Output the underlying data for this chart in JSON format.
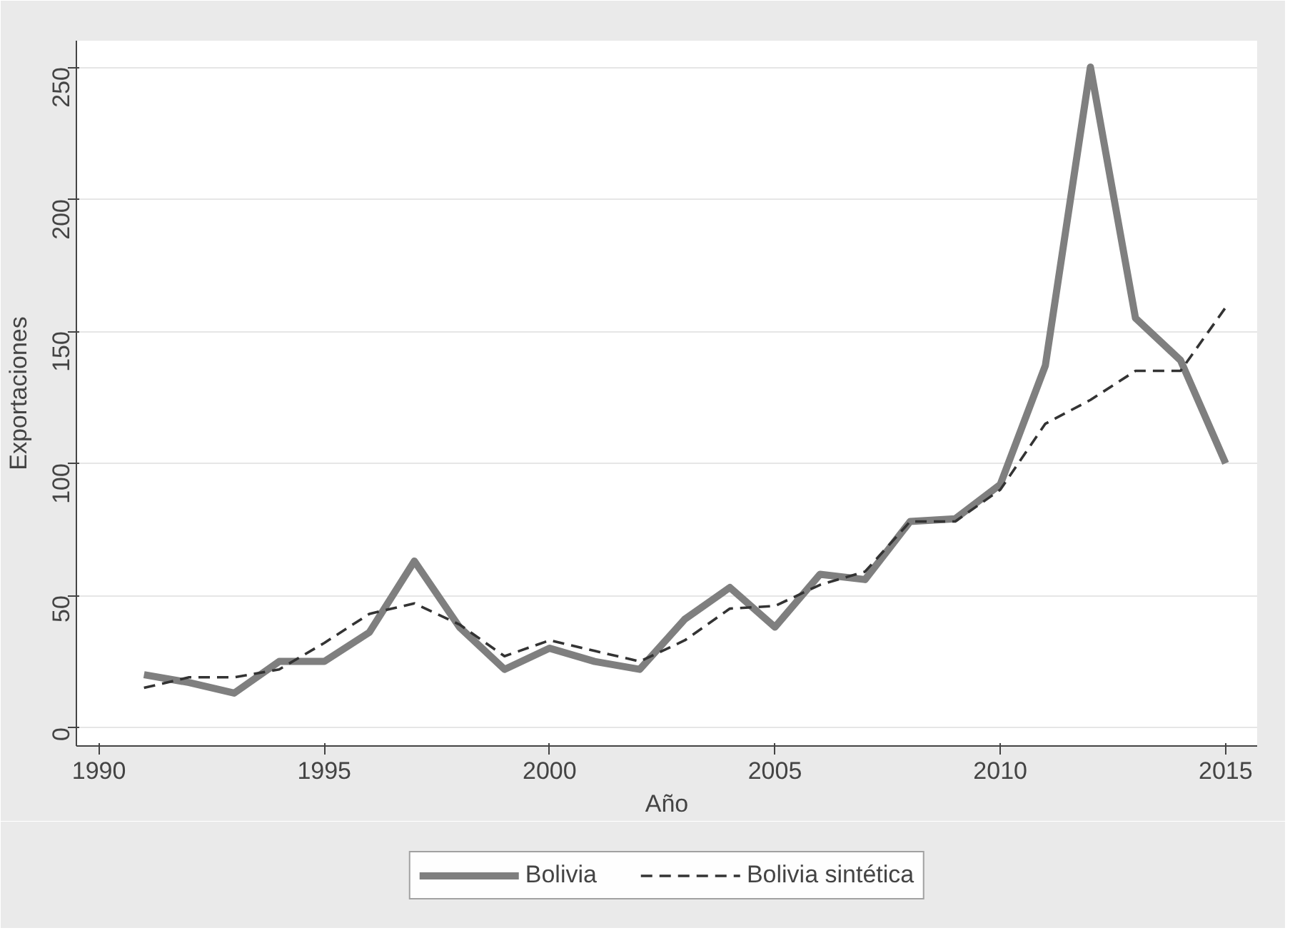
{
  "chart_data": {
    "type": "line",
    "xlabel": "Año",
    "ylabel": "Exportaciones",
    "x": [
      1991,
      1992,
      1993,
      1994,
      1995,
      1996,
      1997,
      1998,
      1999,
      2000,
      2001,
      2002,
      2003,
      2004,
      2005,
      2006,
      2007,
      2008,
      2009,
      2010,
      2011,
      2012,
      2013,
      2014,
      2015
    ],
    "series": [
      {
        "name": "Bolivia",
        "color": "#7f7f7f",
        "line_style": "solid",
        "values": [
          20,
          17,
          13,
          25,
          25,
          36,
          63,
          38,
          22,
          30,
          25,
          22,
          41,
          53,
          38,
          58,
          56,
          78,
          79,
          92,
          137,
          250,
          155,
          139,
          100
        ]
      },
      {
        "name": "Bolivia sintética",
        "color": "#333333",
        "line_style": "dashed",
        "values": [
          15,
          19,
          19,
          22,
          32,
          43,
          47,
          39,
          27,
          33,
          29,
          25,
          33,
          45,
          46,
          54,
          59,
          78,
          78,
          90,
          115,
          124,
          135,
          135,
          159
        ]
      }
    ],
    "xlim": [
      1989.5,
      2015.7
    ],
    "ylim": [
      -7,
      260
    ],
    "xticks": [
      1990,
      1995,
      2000,
      2005,
      2010,
      2015
    ],
    "yticks": [
      0,
      50,
      100,
      150,
      200,
      250
    ],
    "grid": "y",
    "legend": "bottom"
  }
}
